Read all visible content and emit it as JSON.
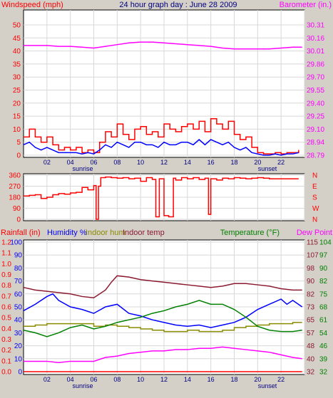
{
  "chart_data": [
    {
      "type": "line",
      "title": "24 hour graph day : June 28 2009",
      "left_axis_label": "Windspeed (mph)",
      "right_axis_label": "Barometer (in.)",
      "left_ticks": [
        "0",
        "5",
        "10",
        "15",
        "20",
        "25",
        "30",
        "35",
        "40",
        "45",
        "50"
      ],
      "right_ticks": [
        "28.79",
        "28.94",
        "29.10",
        "29.25",
        "29.40",
        "29.55",
        "29.70",
        "29.86",
        "30.01",
        "30.16",
        "30.31"
      ],
      "x_ticks": [
        "02",
        "04",
        "06",
        "08",
        "10",
        "12",
        "14",
        "16",
        "18",
        "20",
        "22",
        ""
      ],
      "sunrise_label": "sunrise",
      "sunset_label": "sunset",
      "ylim_left": [
        0,
        50
      ],
      "ylim_right": [
        28.79,
        30.31
      ],
      "series": [
        {
          "name": "Windspeed (mph)",
          "role": "gust",
          "color": "#ff0000",
          "axis": "left",
          "x": [
            0,
            0.5,
            1,
            1.5,
            2,
            2.5,
            3,
            3.5,
            4,
            4.5,
            5,
            5.5,
            6,
            6.5,
            7,
            7.5,
            8,
            8.5,
            9,
            9.5,
            10,
            10.5,
            11,
            11.5,
            12,
            12.5,
            13,
            13.5,
            14,
            14.5,
            15,
            15.5,
            16,
            16.5,
            17,
            17.5,
            18,
            18.5,
            19,
            19.5,
            20,
            20.5,
            21,
            21.5,
            22,
            22.5,
            23,
            23.5
          ],
          "y": [
            7,
            10,
            7,
            5,
            7,
            4,
            2,
            3,
            2,
            3,
            1,
            2,
            1,
            5,
            9,
            7,
            12,
            8,
            6,
            10,
            11,
            8,
            9,
            7,
            12,
            10,
            9,
            11,
            12,
            10,
            13,
            9,
            14,
            12,
            10,
            13,
            8,
            6,
            7,
            3,
            1,
            0.5,
            0.5,
            1,
            0.5,
            1,
            1,
            2
          ]
        },
        {
          "name": "Windspeed (mph)",
          "role": "average",
          "color": "#0000ff",
          "axis": "left",
          "x": [
            0,
            0.5,
            1,
            1.5,
            2,
            2.5,
            3,
            3.5,
            4,
            4.5,
            5,
            5.5,
            6,
            6.5,
            7,
            7.5,
            8,
            8.5,
            9,
            9.5,
            10,
            10.5,
            11,
            11.5,
            12,
            12.5,
            13,
            13.5,
            14,
            14.5,
            15,
            15.5,
            16,
            16.5,
            17,
            17.5,
            18,
            18.5,
            19,
            19.5,
            20,
            20.5,
            21,
            21.5,
            22,
            22.5,
            23,
            23.5
          ],
          "y": [
            4,
            5,
            3,
            2,
            3,
            2,
            1,
            1,
            1,
            1,
            0.5,
            1,
            0.5,
            2,
            4,
            3,
            5,
            4,
            3,
            5,
            5,
            4,
            4,
            3,
            5,
            4,
            4,
            5,
            5,
            4,
            6,
            4,
            6,
            5,
            4,
            5,
            3,
            2,
            3,
            1,
            0.5,
            0,
            0,
            0.5,
            0,
            0.5,
            0.5,
            1
          ]
        },
        {
          "name": "Barometer (in.)",
          "color": "#ff00ff",
          "axis": "right",
          "x": [
            0,
            1,
            2,
            3,
            4,
            5,
            6,
            7,
            8,
            9,
            10,
            11,
            12,
            13,
            14,
            15,
            16,
            17,
            18,
            19,
            20,
            21,
            22,
            23,
            23.8
          ],
          "y": [
            30.07,
            30.07,
            30.07,
            30.06,
            30.06,
            30.05,
            30.04,
            30.06,
            30.08,
            30.1,
            30.11,
            30.11,
            30.1,
            30.09,
            30.08,
            30.07,
            30.06,
            30.04,
            30.03,
            30.03,
            30.03,
            30.03,
            30.04,
            30.05,
            30.05
          ]
        }
      ]
    },
    {
      "type": "scatter",
      "title": "",
      "left_ticks": [
        "0",
        "90",
        "180",
        "270",
        "360"
      ],
      "right_ticks": [
        "N",
        "W",
        "S",
        "E",
        "N"
      ],
      "ylim_left": [
        0,
        360
      ],
      "series": [
        {
          "name": "",
          "color": "#ff0000",
          "x": [
            0,
            0.5,
            1,
            1.5,
            2,
            2.5,
            3,
            3.5,
            4,
            4.5,
            5,
            5.5,
            6,
            6.2,
            6.4,
            6.6,
            7,
            7.5,
            8,
            8.5,
            9,
            9.5,
            10,
            10.5,
            11,
            11.3,
            11.6,
            12,
            12.4,
            12.8,
            13,
            13.5,
            14,
            14.5,
            15,
            15.5,
            15.8,
            16,
            16.5,
            17,
            17.5,
            18,
            18.5,
            19,
            19.5,
            20,
            20.5,
            21,
            21.5,
            22,
            22.5,
            23,
            23.5
          ],
          "y": [
            190,
            195,
            200,
            170,
            180,
            200,
            210,
            205,
            215,
            220,
            260,
            240,
            275,
            0,
            270,
            340,
            345,
            340,
            335,
            340,
            330,
            335,
            310,
            340,
            325,
            20,
            330,
            30,
            20,
            335,
            320,
            340,
            330,
            340,
            325,
            335,
            40,
            330,
            320,
            335,
            330,
            340,
            335,
            330,
            335,
            340,
            335,
            330,
            330,
            330,
            330,
            330,
            330
          ]
        }
      ]
    },
    {
      "type": "line",
      "title": "",
      "labels": {
        "rainfall": "Rainfall (in)",
        "humidity": "Humidity %",
        "indoor_hum": "Indoor hum",
        "indoor_temp": "Indoor temp",
        "temperature": "Temperature (°F)",
        "dew_point": "Dew Point"
      },
      "rain_ticks": [
        "0.0",
        "0.1",
        "0.2",
        "0.3",
        "0.4",
        "0.5",
        "0.6",
        "0.7",
        "0.8",
        "0.9",
        "1.0",
        "1.1",
        "1.2"
      ],
      "humidity_ticks": [
        "0",
        "10",
        "20",
        "30",
        "40",
        "50",
        "60",
        "70",
        "80",
        "90",
        "100"
      ],
      "temp_ticks_a": [
        "32",
        "40",
        "48",
        "57",
        "65",
        "73",
        "82",
        "90",
        "98",
        "107",
        "115"
      ],
      "temp_ticks_b": [
        "32",
        "39",
        "46",
        "54",
        "61",
        "68",
        "75",
        "82",
        "90",
        "97",
        "104"
      ],
      "x_ticks": [
        "02",
        "04",
        "06",
        "08",
        "10",
        "12",
        "14",
        "16",
        "18",
        "20",
        "22",
        ""
      ],
      "sunrise_label": "sunrise",
      "sunset_label": "sunset",
      "ylim_humidity": [
        0,
        100
      ],
      "series": [
        {
          "name": "Rainfall (in)",
          "color": "#ff0000",
          "x": [
            0,
            23.8
          ],
          "y": [
            0,
            0
          ]
        },
        {
          "name": "Humidity %",
          "color": "#0000ff",
          "x": [
            0,
            1,
            2,
            2.5,
            3,
            4,
            5,
            6,
            7,
            8,
            9,
            10,
            11,
            12,
            13,
            14,
            15,
            16,
            17,
            18,
            19,
            20,
            21,
            22,
            22.5,
            23,
            23.8
          ],
          "y": [
            47,
            52,
            58,
            60,
            55,
            50,
            48,
            45,
            50,
            52,
            45,
            43,
            40,
            38,
            36,
            35,
            36,
            34,
            36,
            38,
            42,
            48,
            52,
            56,
            52,
            55,
            50
          ]
        },
        {
          "name": "Indoor hum",
          "color": "#8b8b00",
          "x": [
            0,
            1,
            2,
            3,
            4,
            5,
            6,
            7,
            8,
            9,
            10,
            11,
            12,
            13,
            14,
            15,
            16,
            17,
            18,
            19,
            20,
            21,
            22,
            23,
            23.8
          ],
          "y": [
            35,
            36,
            37,
            37,
            37,
            37,
            35,
            36,
            35,
            34,
            33,
            32,
            31,
            31,
            32,
            31,
            31,
            32,
            34,
            35,
            36,
            37,
            37,
            38,
            38
          ]
        },
        {
          "name": "Indoor temp",
          "color": "#8b1a30",
          "x": [
            0,
            1,
            2,
            3,
            4,
            5,
            6,
            7,
            7.5,
            8,
            9,
            10,
            11,
            12,
            13,
            14,
            15,
            16,
            17,
            18,
            19,
            20,
            21,
            22,
            23,
            23.8
          ],
          "y": [
            65,
            63,
            62,
            61,
            60,
            58,
            57,
            63,
            69,
            74,
            73,
            71,
            70,
            69,
            68,
            67,
            66,
            65,
            66,
            68,
            68,
            67,
            66,
            64,
            63,
            63
          ]
        },
        {
          "name": "Temperature (°F)",
          "color": "#008000",
          "x": [
            0,
            1,
            2,
            3,
            4,
            5,
            6,
            7,
            8,
            9,
            10,
            11,
            12,
            13,
            14,
            15,
            16,
            17,
            18,
            19,
            20,
            21,
            22,
            23,
            23.8
          ],
          "y": [
            32,
            30,
            27,
            30,
            34,
            36,
            33,
            35,
            38,
            40,
            42,
            45,
            47,
            50,
            52,
            55,
            52,
            52,
            48,
            42,
            35,
            32,
            31,
            31,
            32
          ]
        },
        {
          "name": "Dew Point",
          "color": "#ff00ff",
          "x": [
            0,
            1,
            2,
            3,
            4,
            5,
            6,
            7,
            8,
            9,
            10,
            11,
            12,
            13,
            14,
            15,
            16,
            17,
            18,
            19,
            20,
            21,
            22,
            23,
            23.8
          ],
          "y": [
            8,
            8,
            8,
            7,
            8,
            8,
            8,
            11,
            12,
            14,
            15,
            16,
            16,
            17,
            17,
            18,
            18,
            19,
            18,
            17,
            16,
            15,
            13,
            11,
            10
          ]
        }
      ]
    }
  ]
}
